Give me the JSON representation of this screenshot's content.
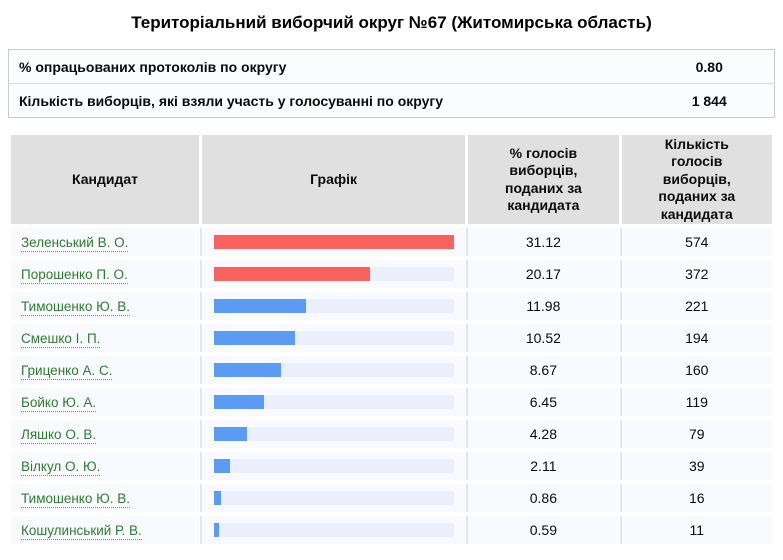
{
  "title": "Територіальний виборчий округ №67 (Житомирська область)",
  "summary": {
    "rows": [
      {
        "label": "% опрацьованих протоколів по округу",
        "value": "0.80"
      },
      {
        "label": "Кількість виборців, які взяли участь у голосуванні по округу",
        "value": "1 844"
      }
    ]
  },
  "results": {
    "columns": [
      "Кандидат",
      "Графік",
      "% голосів виборців, поданих за кандидата",
      "Кількість голосів виборців, поданих за кандидата"
    ],
    "rows": [
      {
        "name": "Зеленський В. О.",
        "percent": "31.12",
        "votes": "574",
        "bar": "leader"
      },
      {
        "name": "Порошенко П. О.",
        "percent": "20.17",
        "votes": "372",
        "bar": "leader"
      },
      {
        "name": "Тимошенко Ю. В.",
        "percent": "11.98",
        "votes": "221",
        "bar": "default"
      },
      {
        "name": "Смешко І. П.",
        "percent": "10.52",
        "votes": "194",
        "bar": "default"
      },
      {
        "name": "Гриценко А. С.",
        "percent": "8.67",
        "votes": "160",
        "bar": "default"
      },
      {
        "name": "Бойко Ю. А.",
        "percent": "6.45",
        "votes": "119",
        "bar": "default"
      },
      {
        "name": "Ляшко О. В.",
        "percent": "4.28",
        "votes": "79",
        "bar": "default"
      },
      {
        "name": "Вілкул О. Ю.",
        "percent": "2.11",
        "votes": "39",
        "bar": "default"
      },
      {
        "name": "Тимошенко Ю. В.",
        "percent": "0.86",
        "votes": "16",
        "bar": "default"
      },
      {
        "name": "Кошулинський Р. В.",
        "percent": "0.59",
        "votes": "11",
        "bar": "default"
      }
    ]
  },
  "colors": {
    "bar_leader": "#f9615e",
    "bar_default": "#5b9bf3",
    "bar_track": "#e9effb",
    "header_bg": "#e0e0e0",
    "cell_bg": "#f8fafd",
    "link_green": "#2e7d2e"
  },
  "chart_data": {
    "type": "bar",
    "orientation": "horizontal",
    "title": "Територіальний виборчий округ №67 (Житомирська область)",
    "categories": [
      "Зеленський В. О.",
      "Порошенко П. О.",
      "Тимошенко Ю. В.",
      "Смешко І. П.",
      "Гриценко А. С.",
      "Бойко Ю. А.",
      "Ляшко О. В.",
      "Вілкул О. Ю.",
      "Тимошенко Ю. В.",
      "Кошулинський Р. В."
    ],
    "series": [
      {
        "name": "% голосів виборців, поданих за кандидата",
        "values": [
          31.12,
          20.17,
          11.98,
          10.52,
          8.67,
          6.45,
          4.28,
          2.11,
          0.86,
          0.59
        ]
      },
      {
        "name": "Кількість голосів виборців, поданих за кандидата",
        "values": [
          574,
          372,
          221,
          194,
          160,
          119,
          79,
          39,
          16,
          11
        ]
      }
    ],
    "xlim": [
      0,
      31.12
    ],
    "grid": false,
    "legend_position": "none",
    "bar_color_leader": "#f9615e",
    "bar_color_default": "#5b9bf3"
  }
}
